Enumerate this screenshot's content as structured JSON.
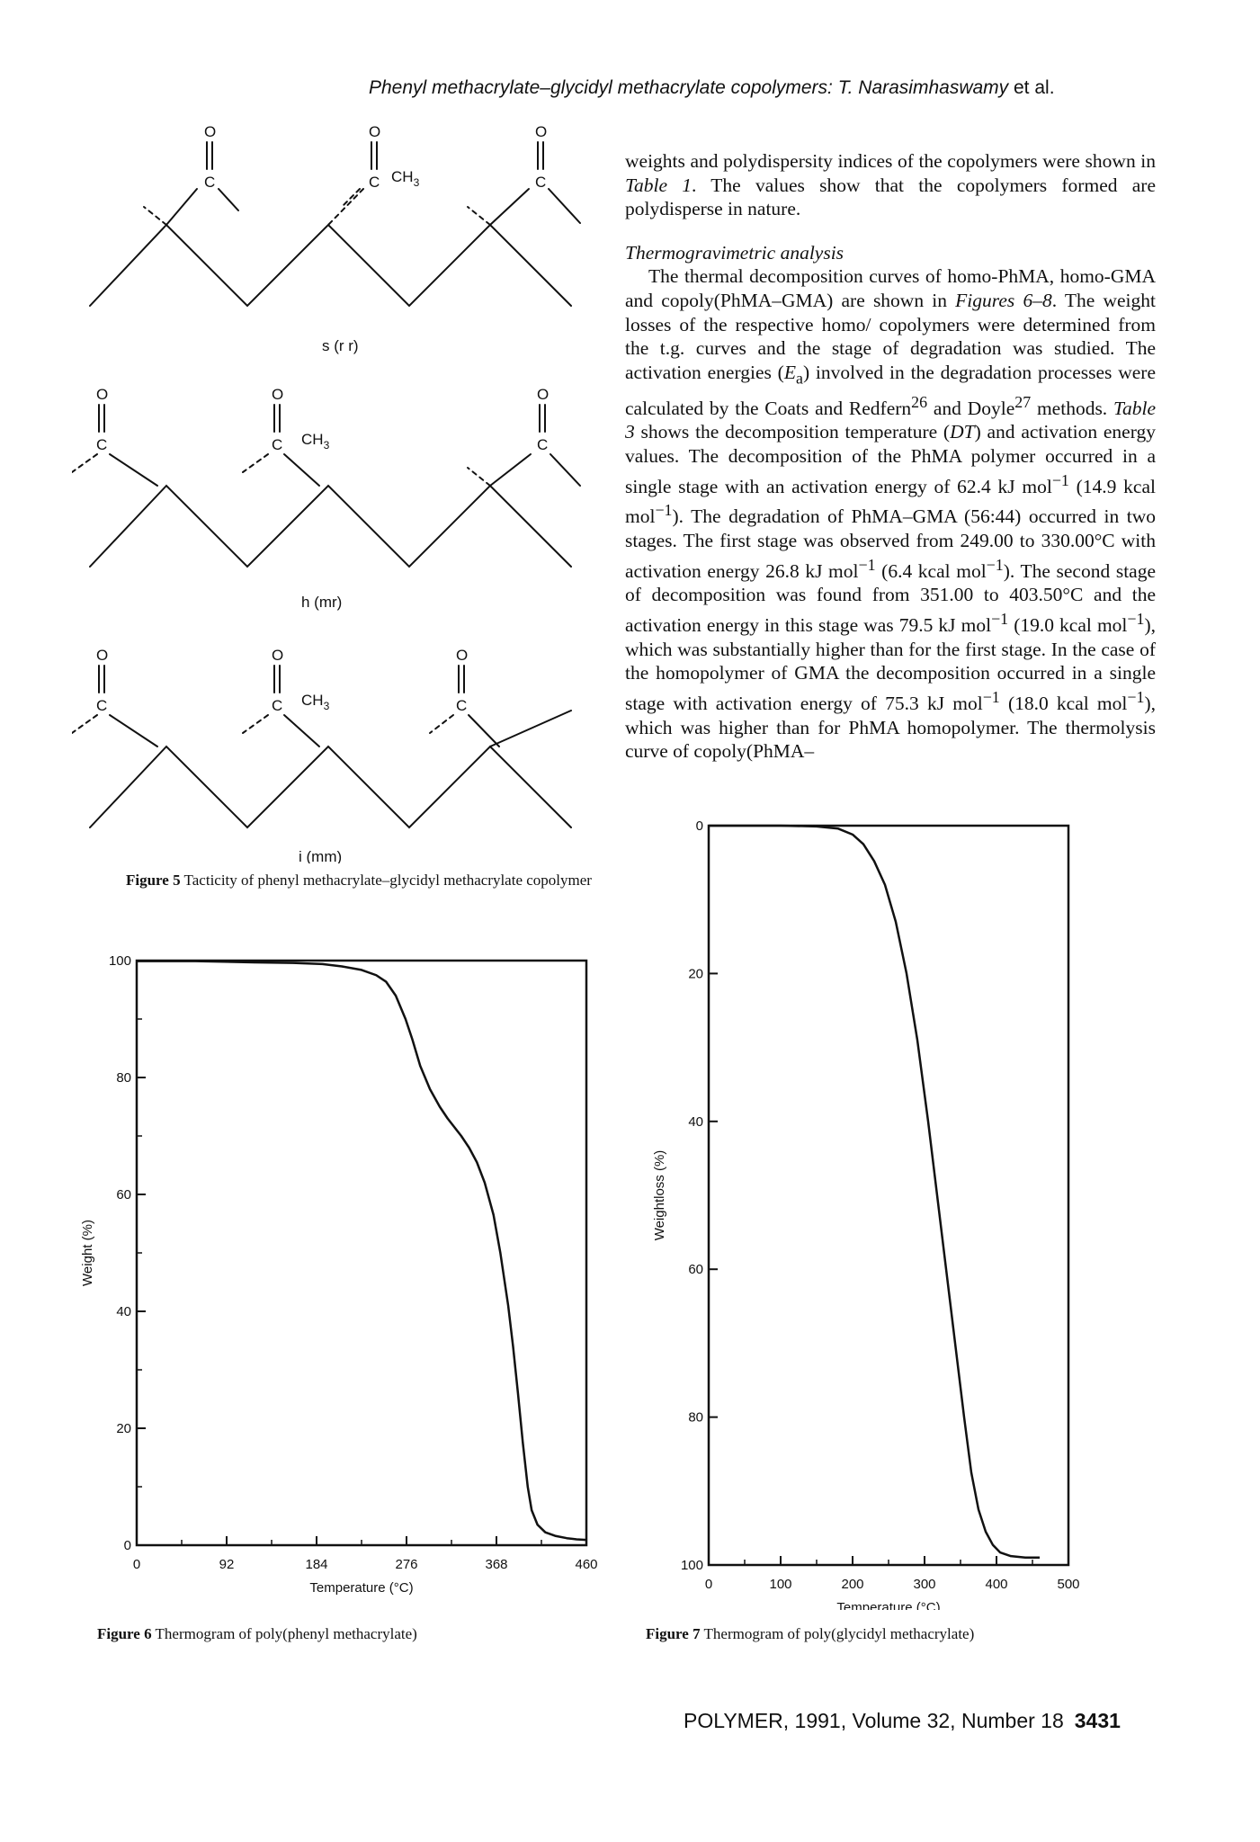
{
  "header": {
    "running_title_italic": "Phenyl methacrylate–glycidyl methacrylate copolymers: T. Narasimhaswamy",
    "running_title_etal": " et al."
  },
  "body": {
    "para1_a": "weights and polydispersity indices of the copolymers were shown in ",
    "para1_ref": "Table 1",
    "para1_b": ". The values show that the copolymers formed are polydisperse in nature.",
    "subheading": "Thermogravimetric analysis",
    "para2_a": "The thermal decomposition curves of homo-PhMA, homo-GMA and copoly(PhMA–GMA) are shown in ",
    "para2_fig": "Figures 6–8",
    "para2_b": ". The weight losses of the respective homo/ copolymers were determined from the t.g. curves and the stage of degradation was studied. The activation energies (",
    "para2_ea": "E",
    "para2_ea_sub": "a",
    "para2_c": ") involved in the degradation processes were calculated by the Coats and Redfern",
    "para2_ref26": "26",
    "para2_d": " and Doyle",
    "para2_ref27": "27",
    "para2_e": " methods. ",
    "para2_table": "Table 3",
    "para2_f": " shows the decomposition temperature (",
    "para2_dt": "DT",
    "para2_g": ") and activation energy values. The decomposition of the PhMA polymer occurred in a single stage with an activation energy of 62.4 kJ mol",
    "sup_neg1": "−1",
    "para2_h": " (14.9 kcal mol",
    "para2_i": "). The degradation of PhMA–GMA (56:44) occurred in two stages. The first stage was observed from 249.00 to 330.00°C with activation energy 26.8 kJ mol",
    "para2_j": " (6.4 kcal mol",
    "para2_k": "). The second stage of decomposition was found from 351.00 to 403.50°C and the activation energy in this stage was 79.5 kJ mol",
    "para2_l": " (19.0 kcal mol",
    "para2_m": "), which was substantially higher than for the first stage. In the case of the homopolymer of GMA the decomposition occurred in a single stage with activation energy of 75.3 kJ mol",
    "para2_n": " (18.0 kcal mol",
    "para2_o": "), which was higher than for PhMA homopolymer. The thermolysis curve of copoly(PhMA–"
  },
  "figure5": {
    "atom_o": "O",
    "atom_c": "C",
    "ch3_main": "CH",
    "ch3_sub": "3",
    "label_srr": "s (r r)",
    "label_hmr": "h (mr)",
    "label_imm": "i (mm)",
    "caption_num": "Figure 5",
    "caption_text": "  Tacticity of phenyl methacrylate–glycidyl methacrylate copolymer"
  },
  "figure6": {
    "caption_num": "Figure 6",
    "caption_text": "  Thermogram of poly(phenyl methacrylate)"
  },
  "figure7": {
    "caption_num": "Figure 7",
    "caption_text": "  Thermogram of poly(glycidyl methacrylate)"
  },
  "footer": {
    "journal": "POLYMER, 1991, Volume 32, Number 18",
    "page": "3431"
  },
  "chart_data": [
    {
      "type": "line",
      "xlabel": "Temperature (°C)",
      "ylabel": "Weight (%)",
      "xlim": [
        0,
        460
      ],
      "ylim": [
        0,
        100
      ],
      "x_ticks": [
        "0",
        "92",
        "184",
        "276",
        "368",
        "460"
      ],
      "y_ticks": [
        "0",
        "20",
        "40",
        "60",
        "80",
        "100"
      ],
      "x_minor": [
        46,
        138,
        230,
        322,
        414
      ],
      "y_minor": [
        10,
        30,
        50,
        70,
        90
      ],
      "grid": false,
      "series": [
        {
          "x": [
            0,
            60,
            120,
            160,
            190,
            210,
            230,
            245,
            255,
            265,
            275,
            282,
            290,
            300,
            310,
            318,
            325,
            332,
            340,
            348,
            356,
            365,
            372,
            380,
            385,
            390,
            395,
            400,
            404,
            410,
            418,
            428,
            440,
            450,
            460
          ],
          "y": [
            99.9,
            99.9,
            99.7,
            99.6,
            99.4,
            99.0,
            98.4,
            97.5,
            96.4,
            94.0,
            90.0,
            86.5,
            82.0,
            78.0,
            75.0,
            73.0,
            71.5,
            70.0,
            68.0,
            65.5,
            62.0,
            56.5,
            50.0,
            41.0,
            34.0,
            26.0,
            17.5,
            10.0,
            6.0,
            3.5,
            2.2,
            1.6,
            1.2,
            1.0,
            0.9
          ]
        }
      ]
    },
    {
      "type": "line",
      "xlabel": "Temperature (°C)",
      "ylabel": "Weightloss (%)",
      "xlim": [
        0,
        500
      ],
      "ylim": [
        0,
        100
      ],
      "y_reversed": true,
      "x_ticks": [
        "0",
        "100",
        "200",
        "300",
        "400",
        "500"
      ],
      "y_ticks": [
        "0",
        "20",
        "40",
        "60",
        "80",
        "100"
      ],
      "x_minor": [
        50,
        150,
        250,
        350,
        450
      ],
      "y_minor": [],
      "grid": false,
      "series": [
        {
          "x": [
            0,
            100,
            150,
            180,
            200,
            215,
            230,
            245,
            260,
            275,
            290,
            305,
            320,
            335,
            345,
            355,
            365,
            375,
            385,
            395,
            405,
            420,
            440,
            460
          ],
          "y": [
            0,
            0,
            0.1,
            0.4,
            1.2,
            2.5,
            4.8,
            8.0,
            13.0,
            20.0,
            29.0,
            40.0,
            52.0,
            64.0,
            72.0,
            80.0,
            87.5,
            92.5,
            95.5,
            97.3,
            98.3,
            98.8,
            99.0,
            99.0
          ]
        }
      ]
    }
  ]
}
